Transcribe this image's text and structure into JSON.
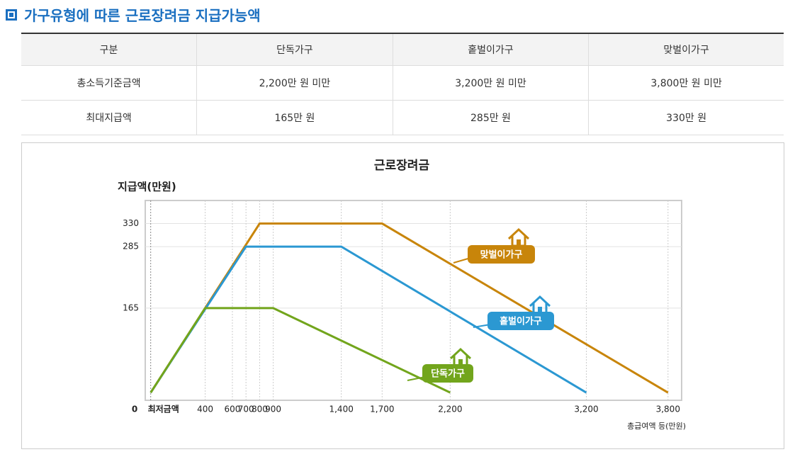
{
  "header": {
    "title": "가구유형에 따른 근로장려금 지급가능액"
  },
  "table": {
    "columns": [
      "구분",
      "단독가구",
      "홑벌이가구",
      "맞벌이가구"
    ],
    "rows": [
      [
        "총소득기준금액",
        "2,200만 원 미만",
        "3,200만 원 미만",
        "3,800만 원 미만"
      ],
      [
        "최대지급액",
        "165만 원",
        "285만 원",
        "330만 원"
      ]
    ]
  },
  "chart_data": {
    "type": "line",
    "title": "근로장려금",
    "y_label": "지급액(만원)",
    "x_label": "총급여액 등(만원)",
    "xlim": [
      -40,
      3900
    ],
    "ylim": [
      -15,
      375
    ],
    "xticks": [
      {
        "value": 0,
        "label": "최저금액"
      },
      400,
      600,
      700,
      800,
      900,
      {
        "value": 1400,
        "label": "1,400"
      },
      {
        "value": 1700,
        "label": "1,700"
      },
      {
        "value": 2200,
        "label": "2,200"
      },
      {
        "value": 3200,
        "label": "3,200"
      },
      {
        "value": 3800,
        "label": "3,800"
      }
    ],
    "yticks": [
      0,
      165,
      285,
      330
    ],
    "series": [
      {
        "name": "맞벌이가구",
        "color": "#c8850a",
        "x": [
          0,
          800,
          1700,
          3800
        ],
        "values": [
          0,
          330,
          330,
          0
        ]
      },
      {
        "name": "홑벌이가구",
        "color": "#2b98d2",
        "x": [
          0,
          700,
          1400,
          3200
        ],
        "values": [
          0,
          285,
          285,
          0
        ]
      },
      {
        "name": "단독가구",
        "color": "#72a51c",
        "x": [
          0,
          400,
          900,
          2200
        ],
        "values": [
          0,
          165,
          165,
          0
        ]
      }
    ]
  }
}
